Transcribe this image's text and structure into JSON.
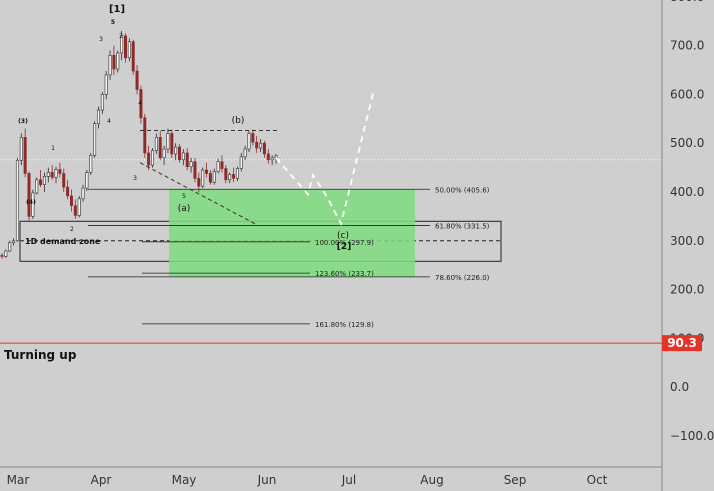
{
  "chart_data": {
    "type": "candlestick",
    "x_ticks": [
      "Mar",
      "Apr",
      "May",
      "Jun",
      "Jul",
      "Aug",
      "Sep",
      "Oct"
    ],
    "y_ticks": [
      "800.0",
      "700.0",
      "600.0",
      "500.0",
      "400.0",
      "300.0",
      "200.0",
      "100.0",
      "0.0",
      "−100.0"
    ],
    "ylim": [
      -130,
      810
    ],
    "price_line": {
      "value": 90.3,
      "label": "90.3",
      "color": "#e5332a"
    },
    "annotation_text": "Turning up",
    "demand_zone": {
      "label": "1D demand zone",
      "top": 340,
      "bottom": 258
    },
    "green_zone": {
      "top": 405.6,
      "bottom": 226.0,
      "color": "#7fdc7f"
    },
    "fib_levels": [
      {
        "label": "50.00% (405.6)",
        "value": 405.6
      },
      {
        "label": "61.80% (331.5)",
        "value": 331.5
      },
      {
        "label": "100.00% (297.9)",
        "value": 297.9
      },
      {
        "label": "78.60% (226.0)",
        "value": 226.0
      },
      {
        "label": "123.60% (233.7)",
        "value": 233.7
      },
      {
        "label": "161.80% (129.8)",
        "value": 129.8
      }
    ],
    "wave_labels": [
      "[1]",
      "5",
      "3",
      "2",
      "(3)",
      "1",
      "4",
      "4",
      "3",
      "(4)",
      "2",
      "(b)",
      "5",
      "(a)",
      "(c)",
      "[2]"
    ],
    "candles_ohlc": [
      [
        270,
        275,
        263,
        268
      ],
      [
        268,
        282,
        265,
        279
      ],
      [
        279,
        300,
        277,
        296
      ],
      [
        296,
        305,
        290,
        300
      ],
      [
        300,
        470,
        298,
        465
      ],
      [
        465,
        520,
        455,
        512
      ],
      [
        512,
        530,
        430,
        438
      ],
      [
        438,
        442,
        340,
        350
      ],
      [
        350,
        405,
        345,
        398
      ],
      [
        398,
        430,
        395,
        425
      ],
      [
        425,
        445,
        410,
        415
      ],
      [
        415,
        440,
        400,
        432
      ],
      [
        432,
        450,
        420,
        440
      ],
      [
        440,
        455,
        425,
        430
      ],
      [
        430,
        452,
        418,
        446
      ],
      [
        446,
        460,
        430,
        438
      ],
      [
        438,
        448,
        400,
        410
      ],
      [
        410,
        425,
        385,
        392
      ],
      [
        392,
        405,
        360,
        372
      ],
      [
        372,
        385,
        345,
        352
      ],
      [
        352,
        392,
        348,
        386
      ],
      [
        386,
        415,
        380,
        408
      ],
      [
        408,
        445,
        402,
        440
      ],
      [
        440,
        480,
        435,
        475
      ],
      [
        475,
        545,
        470,
        540
      ],
      [
        540,
        575,
        530,
        568
      ],
      [
        568,
        605,
        560,
        600
      ],
      [
        600,
        648,
        590,
        640
      ],
      [
        640,
        690,
        630,
        680
      ],
      [
        680,
        700,
        640,
        652
      ],
      [
        652,
        690,
        645,
        685
      ],
      [
        685,
        730,
        670,
        720
      ],
      [
        720,
        725,
        665,
        675
      ],
      [
        675,
        715,
        668,
        708
      ],
      [
        708,
        712,
        640,
        648
      ],
      [
        648,
        660,
        600,
        610
      ],
      [
        610,
        618,
        540,
        552
      ],
      [
        552,
        560,
        470,
        480
      ],
      [
        480,
        495,
        445,
        455
      ],
      [
        455,
        490,
        450,
        485
      ],
      [
        485,
        520,
        478,
        512
      ],
      [
        512,
        525,
        465,
        470
      ],
      [
        470,
        495,
        455,
        488
      ],
      [
        488,
        530,
        480,
        520
      ],
      [
        520,
        528,
        470,
        478
      ],
      [
        478,
        500,
        465,
        492
      ],
      [
        492,
        498,
        460,
        466
      ],
      [
        466,
        488,
        455,
        480
      ],
      [
        480,
        490,
        445,
        452
      ],
      [
        452,
        470,
        440,
        462
      ],
      [
        462,
        470,
        420,
        428
      ],
      [
        428,
        440,
        400,
        412
      ],
      [
        412,
        450,
        408,
        445
      ],
      [
        445,
        460,
        430,
        438
      ],
      [
        438,
        445,
        415,
        420
      ],
      [
        420,
        448,
        415,
        442
      ],
      [
        442,
        468,
        438,
        462
      ],
      [
        462,
        475,
        440,
        448
      ],
      [
        448,
        455,
        418,
        425
      ],
      [
        425,
        440,
        418,
        436
      ],
      [
        436,
        450,
        420,
        428
      ],
      [
        428,
        452,
        422,
        448
      ],
      [
        448,
        480,
        442,
        472
      ],
      [
        472,
        495,
        465,
        488
      ],
      [
        488,
        525,
        482,
        520
      ],
      [
        520,
        528,
        495,
        502
      ],
      [
        502,
        515,
        480,
        490
      ],
      [
        490,
        508,
        482,
        500
      ],
      [
        500,
        505,
        470,
        478
      ],
      [
        478,
        488,
        458,
        466
      ],
      [
        466,
        475,
        455,
        470
      ],
      [
        470,
        478,
        458,
        474
      ]
    ]
  }
}
